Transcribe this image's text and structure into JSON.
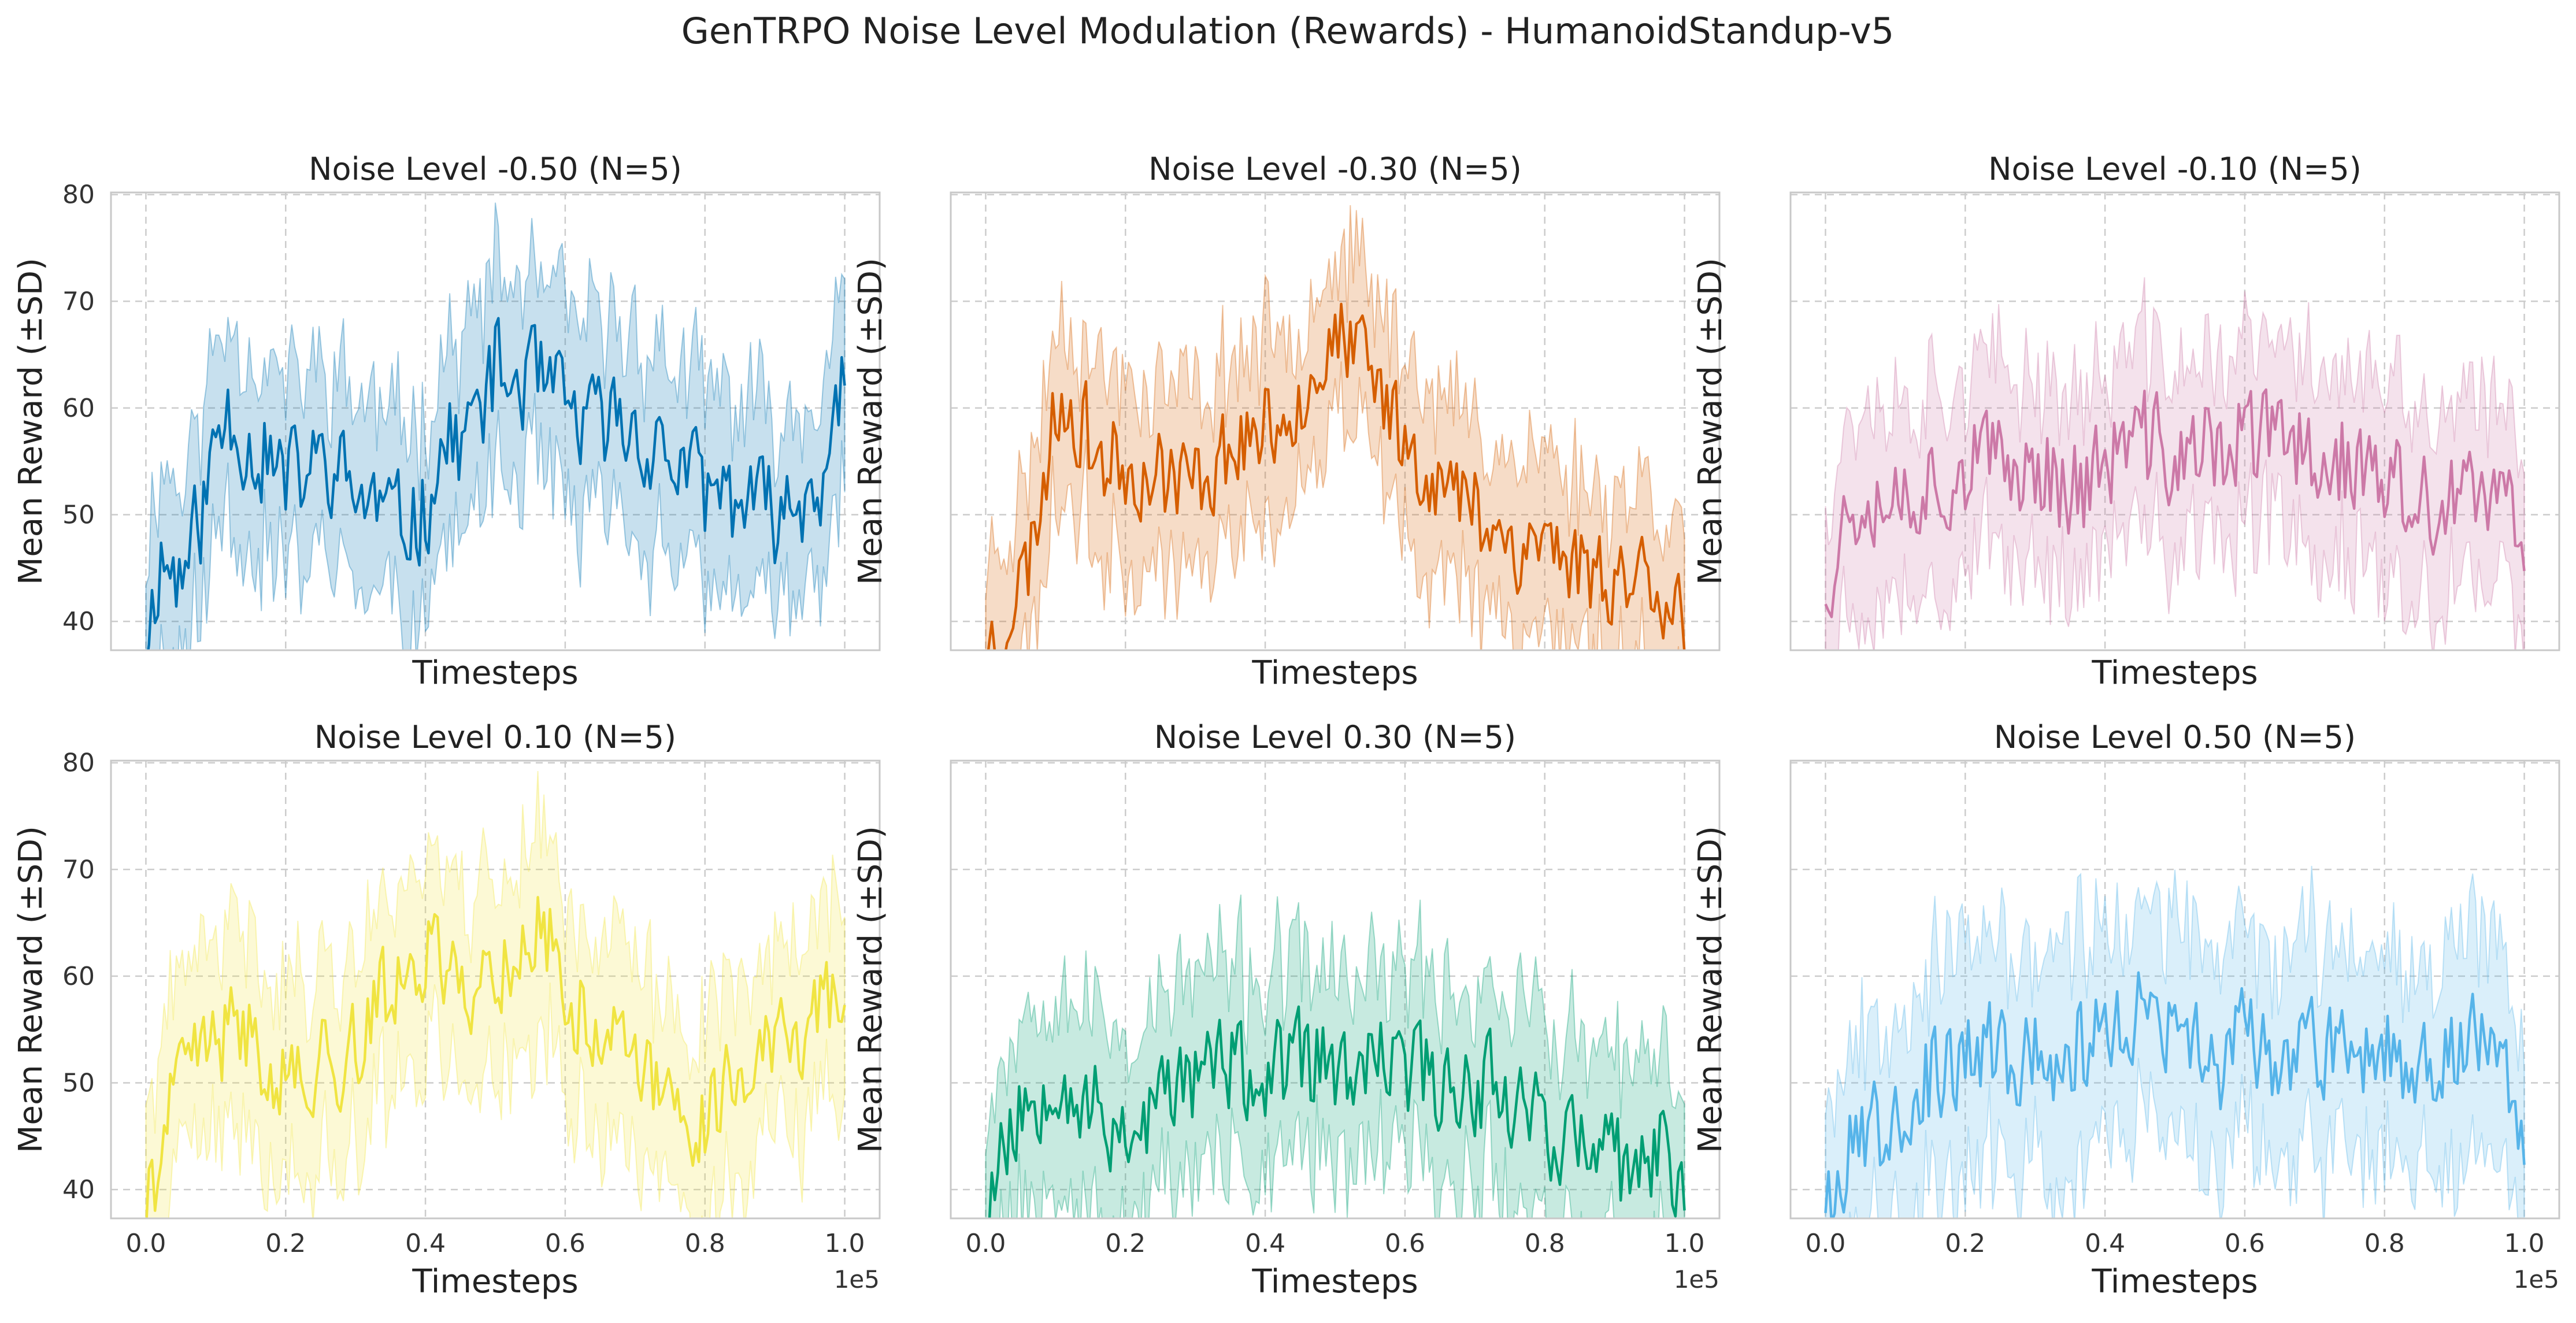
{
  "figure": {
    "title": "GenTRPO Noise Level Modulation (Rewards) - HumanoidStandup-v5"
  },
  "chart_data": [
    {
      "type": "line",
      "title": "Noise Level -0.50 (N=5)",
      "color": "#0072B2",
      "xlabel": "Timesteps",
      "ylabel": "Mean Reward (±SD)",
      "xlim": [
        -0.05,
        1.05
      ],
      "ylim": [
        37.3,
        80.2
      ],
      "x_scale_label": "1e5",
      "xticks": [
        0.0,
        0.2,
        0.4,
        0.6,
        0.8,
        1.0
      ],
      "yticks": [
        40,
        50,
        60,
        70,
        80
      ],
      "grid": true,
      "show_xticklabels": false,
      "show_yticklabels": true,
      "x_range": [
        0,
        1
      ],
      "keypoints": [
        [
          0,
          38
        ],
        [
          0.02,
          46
        ],
        [
          0.05,
          44
        ],
        [
          0.08,
          50
        ],
        [
          0.1,
          57
        ],
        [
          0.12,
          60
        ],
        [
          0.15,
          56
        ],
        [
          0.18,
          55
        ],
        [
          0.2,
          53
        ],
        [
          0.23,
          54
        ],
        [
          0.26,
          55
        ],
        [
          0.3,
          52
        ],
        [
          0.33,
          51
        ],
        [
          0.36,
          49
        ],
        [
          0.38,
          50
        ],
        [
          0.4,
          50
        ],
        [
          0.42,
          56
        ],
        [
          0.45,
          57
        ],
        [
          0.48,
          60
        ],
        [
          0.5,
          64
        ],
        [
          0.52,
          62
        ],
        [
          0.55,
          63
        ],
        [
          0.58,
          61
        ],
        [
          0.6,
          60
        ],
        [
          0.63,
          58
        ],
        [
          0.66,
          59
        ],
        [
          0.7,
          58
        ],
        [
          0.73,
          56
        ],
        [
          0.76,
          55
        ],
        [
          0.8,
          52
        ],
        [
          0.83,
          52
        ],
        [
          0.86,
          51
        ],
        [
          0.9,
          50
        ],
        [
          0.93,
          51
        ],
        [
          0.96,
          54
        ],
        [
          0.98,
          53
        ],
        [
          1.0,
          64
        ]
      ],
      "noise": 3.2,
      "sd": [
        6,
        12
      ],
      "seed": 11
    },
    {
      "type": "line",
      "title": "Noise Level -0.30 (N=5)",
      "color": "#D55E00",
      "xlabel": "Timesteps",
      "ylabel": "Mean Reward (±SD)",
      "xlim": [
        -0.05,
        1.05
      ],
      "ylim": [
        37.3,
        80.2
      ],
      "x_scale_label": "1e5",
      "xticks": [
        0.0,
        0.2,
        0.4,
        0.6,
        0.8,
        1.0
      ],
      "yticks": [
        40,
        50,
        60,
        70,
        80
      ],
      "grid": true,
      "show_xticklabels": false,
      "show_yticklabels": false,
      "x_range": [
        0,
        1
      ],
      "keypoints": [
        [
          0,
          37
        ],
        [
          0.03,
          41
        ],
        [
          0.06,
          45
        ],
        [
          0.09,
          56
        ],
        [
          0.11,
          62
        ],
        [
          0.14,
          58
        ],
        [
          0.17,
          55
        ],
        [
          0.2,
          55
        ],
        [
          0.23,
          54
        ],
        [
          0.26,
          54
        ],
        [
          0.3,
          53
        ],
        [
          0.33,
          55
        ],
        [
          0.36,
          57
        ],
        [
          0.4,
          58
        ],
        [
          0.43,
          60
        ],
        [
          0.46,
          62
        ],
        [
          0.48,
          65
        ],
        [
          0.51,
          66
        ],
        [
          0.54,
          64
        ],
        [
          0.57,
          61
        ],
        [
          0.6,
          57
        ],
        [
          0.63,
          55
        ],
        [
          0.66,
          52
        ],
        [
          0.7,
          51
        ],
        [
          0.73,
          49
        ],
        [
          0.76,
          47
        ],
        [
          0.8,
          48
        ],
        [
          0.83,
          46
        ],
        [
          0.86,
          45
        ],
        [
          0.9,
          44
        ],
        [
          0.93,
          45
        ],
        [
          0.96,
          44
        ],
        [
          1.0,
          41
        ]
      ],
      "noise": 3.0,
      "sd": [
        5,
        11
      ],
      "seed": 23
    },
    {
      "type": "line",
      "title": "Noise Level -0.10 (N=5)",
      "color": "#CC79A7",
      "xlabel": "Timesteps",
      "ylabel": "Mean Reward (±SD)",
      "xlim": [
        -0.05,
        1.05
      ],
      "ylim": [
        37.3,
        80.2
      ],
      "x_scale_label": "1e5",
      "xticks": [
        0.0,
        0.2,
        0.4,
        0.6,
        0.8,
        1.0
      ],
      "yticks": [
        40,
        50,
        60,
        70,
        80
      ],
      "grid": true,
      "show_xticklabels": false,
      "show_yticklabels": false,
      "x_range": [
        0,
        1
      ],
      "keypoints": [
        [
          0,
          44
        ],
        [
          0.03,
          50
        ],
        [
          0.06,
          53
        ],
        [
          0.1,
          52
        ],
        [
          0.14,
          53
        ],
        [
          0.18,
          54
        ],
        [
          0.22,
          55
        ],
        [
          0.26,
          54
        ],
        [
          0.3,
          55
        ],
        [
          0.34,
          53
        ],
        [
          0.38,
          53
        ],
        [
          0.42,
          56
        ],
        [
          0.45,
          57
        ],
        [
          0.48,
          56
        ],
        [
          0.52,
          55
        ],
        [
          0.56,
          56
        ],
        [
          0.6,
          57
        ],
        [
          0.64,
          57
        ],
        [
          0.68,
          56
        ],
        [
          0.72,
          56
        ],
        [
          0.76,
          54
        ],
        [
          0.8,
          53
        ],
        [
          0.84,
          51
        ],
        [
          0.88,
          50
        ],
        [
          0.92,
          51
        ],
        [
          0.96,
          51
        ],
        [
          1.0,
          50
        ]
      ],
      "noise": 3.4,
      "sd": [
        6,
        11
      ],
      "seed": 37
    },
    {
      "type": "line",
      "title": "Noise Level 0.10 (N=5)",
      "color": "#F0E442",
      "xlabel": "Timesteps",
      "ylabel": "Mean Reward (±SD)",
      "xlim": [
        -0.05,
        1.05
      ],
      "ylim": [
        37.3,
        80.2
      ],
      "x_scale_label": "1e5",
      "xticks": [
        0.0,
        0.2,
        0.4,
        0.6,
        0.8,
        1.0
      ],
      "yticks": [
        40,
        50,
        60,
        70,
        80
      ],
      "grid": true,
      "show_xticklabels": true,
      "show_yticklabels": true,
      "x_range": [
        0,
        1
      ],
      "keypoints": [
        [
          0,
          38
        ],
        [
          0.03,
          46
        ],
        [
          0.06,
          52
        ],
        [
          0.1,
          54
        ],
        [
          0.14,
          55
        ],
        [
          0.18,
          52
        ],
        [
          0.22,
          50
        ],
        [
          0.26,
          52
        ],
        [
          0.3,
          53
        ],
        [
          0.34,
          58
        ],
        [
          0.38,
          62
        ],
        [
          0.42,
          62
        ],
        [
          0.46,
          59
        ],
        [
          0.5,
          60
        ],
        [
          0.54,
          63
        ],
        [
          0.57,
          65
        ],
        [
          0.6,
          58
        ],
        [
          0.63,
          56
        ],
        [
          0.66,
          55
        ],
        [
          0.7,
          52
        ],
        [
          0.73,
          49
        ],
        [
          0.76,
          47
        ],
        [
          0.8,
          47
        ],
        [
          0.83,
          50
        ],
        [
          0.86,
          52
        ],
        [
          0.9,
          53
        ],
        [
          0.94,
          55
        ],
        [
          0.97,
          58
        ],
        [
          1.0,
          60
        ]
      ],
      "noise": 3.0,
      "sd": [
        6,
        12
      ],
      "seed": 41
    },
    {
      "type": "line",
      "title": "Noise Level 0.30 (N=5)",
      "color": "#009E73",
      "xlabel": "Timesteps",
      "ylabel": "Mean Reward (±SD)",
      "xlim": [
        -0.05,
        1.05
      ],
      "ylim": [
        37.3,
        80.2
      ],
      "x_scale_label": "1e5",
      "xticks": [
        0.0,
        0.2,
        0.4,
        0.6,
        0.8,
        1.0
      ],
      "yticks": [
        40,
        50,
        60,
        70,
        80
      ],
      "grid": true,
      "show_xticklabels": true,
      "show_yticklabels": false,
      "x_range": [
        0,
        1
      ],
      "keypoints": [
        [
          0,
          39
        ],
        [
          0.03,
          45
        ],
        [
          0.07,
          49
        ],
        [
          0.1,
          52
        ],
        [
          0.14,
          48
        ],
        [
          0.18,
          46
        ],
        [
          0.22,
          46
        ],
        [
          0.26,
          49
        ],
        [
          0.3,
          51
        ],
        [
          0.34,
          52
        ],
        [
          0.38,
          50
        ],
        [
          0.42,
          51
        ],
        [
          0.46,
          52
        ],
        [
          0.5,
          51
        ],
        [
          0.54,
          50
        ],
        [
          0.58,
          52
        ],
        [
          0.62,
          51
        ],
        [
          0.66,
          50
        ],
        [
          0.7,
          50
        ],
        [
          0.74,
          50
        ],
        [
          0.78,
          48
        ],
        [
          0.82,
          45
        ],
        [
          0.86,
          44
        ],
        [
          0.9,
          42
        ],
        [
          0.94,
          42
        ],
        [
          0.97,
          43
        ],
        [
          1.0,
          41
        ]
      ],
      "noise": 3.2,
      "sd": [
        6,
        12
      ],
      "seed": 53
    },
    {
      "type": "line",
      "title": "Noise Level 0.50 (N=5)",
      "color": "#56B4E9",
      "xlabel": "Timesteps",
      "ylabel": "Mean Reward (±SD)",
      "xlim": [
        -0.05,
        1.05
      ],
      "ylim": [
        37.3,
        80.2
      ],
      "x_scale_label": "1e5",
      "xticks": [
        0.0,
        0.2,
        0.4,
        0.6,
        0.8,
        1.0
      ],
      "yticks": [
        40,
        50,
        60,
        70,
        80
      ],
      "grid": true,
      "show_xticklabels": true,
      "show_yticklabels": false,
      "x_range": [
        0,
        1
      ],
      "keypoints": [
        [
          0,
          40
        ],
        [
          0.03,
          43
        ],
        [
          0.06,
          45
        ],
        [
          0.1,
          48
        ],
        [
          0.14,
          50
        ],
        [
          0.18,
          51
        ],
        [
          0.22,
          53
        ],
        [
          0.26,
          52
        ],
        [
          0.3,
          52
        ],
        [
          0.34,
          53
        ],
        [
          0.38,
          54
        ],
        [
          0.42,
          55
        ],
        [
          0.45,
          56
        ],
        [
          0.48,
          55
        ],
        [
          0.52,
          53
        ],
        [
          0.56,
          52
        ],
        [
          0.6,
          54
        ],
        [
          0.64,
          53
        ],
        [
          0.68,
          52
        ],
        [
          0.72,
          53
        ],
        [
          0.76,
          54
        ],
        [
          0.8,
          53
        ],
        [
          0.84,
          52
        ],
        [
          0.88,
          53
        ],
        [
          0.92,
          54
        ],
        [
          0.96,
          54
        ],
        [
          1.0,
          46
        ]
      ],
      "noise": 3.3,
      "sd": [
        7,
        13
      ],
      "seed": 67
    }
  ]
}
